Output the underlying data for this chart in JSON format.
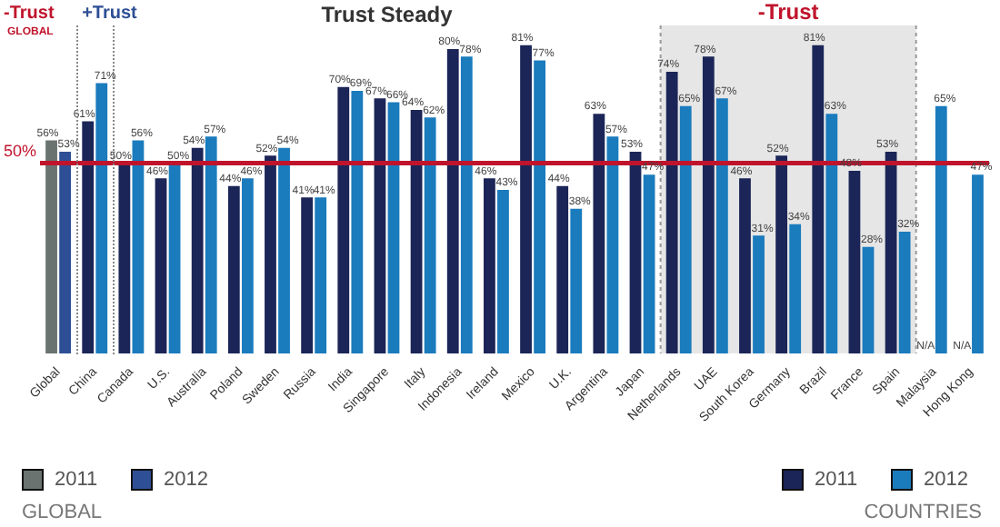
{
  "chart_data": {
    "type": "bar",
    "categories": [
      "Global",
      "China",
      "Canada",
      "U.S.",
      "Australia",
      "Poland",
      "Sweden",
      "Russia",
      "India",
      "Singapore",
      "Italy",
      "Indonesia",
      "Ireland",
      "Mexico",
      "U.K.",
      "Argentina",
      "Japan",
      "Netherlands",
      "UAE",
      "South Korea",
      "Germany",
      "Brazil",
      "France",
      "Spain",
      "Malaysia",
      "Hong Kong"
    ],
    "series": [
      {
        "name": "2011",
        "color": "#1b2557",
        "colors": [
          "#6b7370",
          "#1b2557",
          "#1b2557",
          "#1b2557",
          "#1b2557",
          "#1b2557",
          "#1b2557",
          "#1b2557",
          "#1b2557",
          "#1b2557",
          "#1b2557",
          "#1b2557",
          "#1b2557",
          "#1b2557",
          "#1b2557",
          "#1b2557",
          "#1b2557",
          "#1b2557",
          "#1b2557",
          "#1b2557",
          "#1b2557",
          "#1b2557",
          "#1b2557",
          "#1b2557",
          "#1b2557",
          "#1b2557"
        ],
        "values": [
          56,
          61,
          50,
          46,
          54,
          44,
          52,
          41,
          70,
          67,
          64,
          80,
          46,
          81,
          44,
          63,
          53,
          74,
          78,
          46,
          52,
          81,
          48,
          53,
          null,
          null
        ],
        "value_labels": [
          "56%",
          "61%",
          "50%",
          "46%",
          "54%",
          "44%",
          "52%",
          "41%",
          "70%",
          "67%",
          "64%",
          "80%",
          "46%",
          "81%",
          "44%",
          "63%",
          "53%",
          "74%",
          "78%",
          "46%",
          "52%",
          "81%",
          "48%",
          "53%",
          "N/A",
          "N/A"
        ]
      },
      {
        "name": "2012",
        "color": "#1a7bbd",
        "colors": [
          "#2e4f95",
          "#1a7bbd",
          "#1a7bbd",
          "#1a7bbd",
          "#1a7bbd",
          "#1a7bbd",
          "#1a7bbd",
          "#1a7bbd",
          "#1a7bbd",
          "#1a7bbd",
          "#1a7bbd",
          "#1a7bbd",
          "#1a7bbd",
          "#1a7bbd",
          "#1a7bbd",
          "#1a7bbd",
          "#1a7bbd",
          "#1a7bbd",
          "#1a7bbd",
          "#1a7bbd",
          "#1a7bbd",
          "#1a7bbd",
          "#1a7bbd",
          "#1a7bbd",
          "#1a7bbd",
          "#1a7bbd"
        ],
        "values": [
          53,
          71,
          56,
          50,
          57,
          46,
          54,
          41,
          69,
          66,
          62,
          78,
          43,
          77,
          38,
          57,
          47,
          65,
          67,
          31,
          34,
          63,
          28,
          32,
          65,
          47
        ],
        "value_labels": [
          "53%",
          "71%",
          "56%",
          "50%",
          "57%",
          "46%",
          "54%",
          "41%",
          "69%",
          "66%",
          "62%",
          "78%",
          "43%",
          "77%",
          "38%",
          "57%",
          "47%",
          "65%",
          "67%",
          "31%",
          "34%",
          "63%",
          "28%",
          "32%",
          "65%",
          "47%"
        ]
      }
    ],
    "tick_labels": "x",
    "legend": "bottom",
    "ref_lines": [
      {
        "axis": "y",
        "value": 50,
        "label": "50%",
        "color": "#c0142c"
      }
    ],
    "bands": [
      {
        "axis": "x",
        "from": "Netherlands",
        "to": "Spain",
        "label": "-Trust",
        "color": "#e6e6e6"
      }
    ],
    "annotations": [
      "-Trust",
      "GLOBAL",
      "+Trust",
      "Trust Steady",
      "GLOBAL",
      "COUNTRIES"
    ]
  }
}
